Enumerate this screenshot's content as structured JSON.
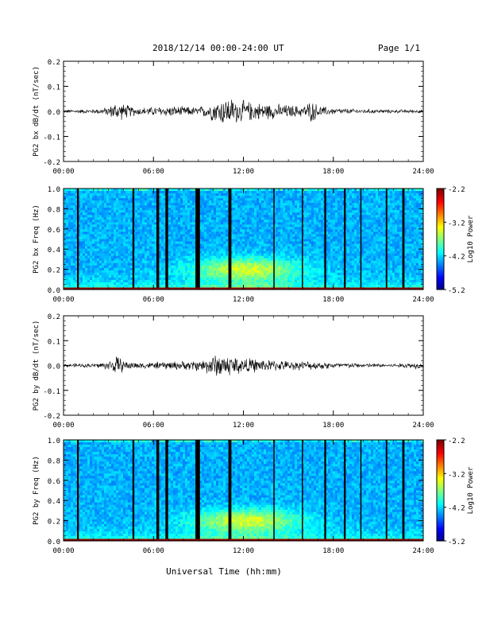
{
  "header": {
    "date_range": "2018/12/14  00:00-24:00 UT",
    "page": "Page 1/1"
  },
  "footer": {
    "xlabel": "Universal Time (hh:mm)"
  },
  "chart_data": [
    {
      "type": "line",
      "ylabel": "PG2 bx dB/dt (nT/sec)",
      "ylim": [
        -0.2,
        0.2
      ],
      "yticks": [
        "0.2",
        "0.1",
        "0.0",
        "-0.1",
        "-0.2"
      ],
      "xlim_hours": [
        0,
        24
      ],
      "xticks": [
        "00:00",
        "06:00",
        "12:00",
        "18:00",
        "24:00"
      ],
      "envelope": {
        "hours": [
          0,
          2,
          3,
          3.5,
          4.5,
          5,
          6,
          7,
          8,
          9,
          9.5,
          10,
          10.5,
          11,
          11.5,
          12,
          13,
          14,
          15,
          16,
          16.5,
          17,
          17.5,
          18,
          19,
          20,
          22,
          24
        ],
        "amplitude": [
          0.008,
          0.01,
          0.02,
          0.045,
          0.025,
          0.018,
          0.02,
          0.025,
          0.022,
          0.02,
          0.03,
          0.045,
          0.06,
          0.065,
          0.055,
          0.048,
          0.04,
          0.035,
          0.03,
          0.025,
          0.05,
          0.028,
          0.02,
          0.015,
          0.012,
          0.01,
          0.008,
          0.008
        ]
      }
    },
    {
      "type": "heatmap",
      "ylabel": "PG2 bx Freq (Hz)",
      "ylim": [
        0.0,
        1.0
      ],
      "yticks": [
        "1.0",
        "0.8",
        "0.6",
        "0.4",
        "0.2",
        "0.0"
      ],
      "xlim_hours": [
        0,
        24
      ],
      "xticks": [
        "00:00",
        "06:00",
        "12:00",
        "18:00",
        "24:00"
      ],
      "colorbar": {
        "label": "Log10 Power",
        "range": [
          -5.2,
          -2.2
        ],
        "ticks": [
          "-2.2",
          "-3.2",
          "-4.2",
          "-5.2"
        ]
      },
      "gaps_hours": [
        [
          0.9,
          0.12
        ],
        [
          4.6,
          0.12
        ],
        [
          6.2,
          0.18
        ],
        [
          6.8,
          0.18
        ],
        [
          8.8,
          0.3
        ],
        [
          11.0,
          0.2
        ],
        [
          14.0,
          0.08
        ],
        [
          15.9,
          0.08
        ],
        [
          17.4,
          0.12
        ],
        [
          18.7,
          0.12
        ],
        [
          19.8,
          0.08
        ],
        [
          21.5,
          0.1
        ],
        [
          22.6,
          0.15
        ]
      ]
    },
    {
      "type": "line",
      "ylabel": "PG2 by dB/dt (nT/sec)",
      "ylim": [
        -0.2,
        0.2
      ],
      "yticks": [
        "0.2",
        "0.1",
        "0.0",
        "-0.1",
        "-0.2"
      ],
      "xlim_hours": [
        0,
        24
      ],
      "xticks": [
        "00:00",
        "06:00",
        "12:00",
        "18:00",
        "24:00"
      ],
      "envelope": {
        "hours": [
          0,
          2,
          3,
          3.5,
          4.2,
          5,
          6,
          7,
          8,
          9,
          9.5,
          10,
          10.5,
          11,
          11.5,
          12,
          13,
          14,
          15,
          16,
          17,
          18,
          19,
          20,
          22,
          23.5,
          24
        ],
        "amplitude": [
          0.008,
          0.01,
          0.02,
          0.045,
          0.02,
          0.015,
          0.015,
          0.02,
          0.02,
          0.025,
          0.035,
          0.05,
          0.055,
          0.05,
          0.045,
          0.035,
          0.03,
          0.025,
          0.02,
          0.02,
          0.018,
          0.015,
          0.012,
          0.01,
          0.008,
          0.015,
          0.008
        ]
      }
    },
    {
      "type": "heatmap",
      "ylabel": "PG2 by Freq (Hz)",
      "ylim": [
        0.0,
        1.0
      ],
      "yticks": [
        "1.0",
        "0.8",
        "0.6",
        "0.4",
        "0.2",
        "0.0"
      ],
      "xlim_hours": [
        0,
        24
      ],
      "xticks": [
        "00:00",
        "06:00",
        "12:00",
        "18:00",
        "24:00"
      ],
      "colorbar": {
        "label": "Log10 Power",
        "range": [
          -5.2,
          -2.2
        ],
        "ticks": [
          "-2.2",
          "-3.2",
          "-4.2",
          "-5.2"
        ]
      },
      "gaps_hours": [
        [
          0.9,
          0.12
        ],
        [
          4.6,
          0.12
        ],
        [
          6.2,
          0.18
        ],
        [
          6.8,
          0.18
        ],
        [
          8.8,
          0.3
        ],
        [
          11.0,
          0.2
        ],
        [
          14.0,
          0.08
        ],
        [
          15.9,
          0.08
        ],
        [
          17.4,
          0.12
        ],
        [
          18.7,
          0.12
        ],
        [
          19.8,
          0.08
        ],
        [
          21.5,
          0.1
        ],
        [
          22.6,
          0.15
        ]
      ]
    }
  ]
}
